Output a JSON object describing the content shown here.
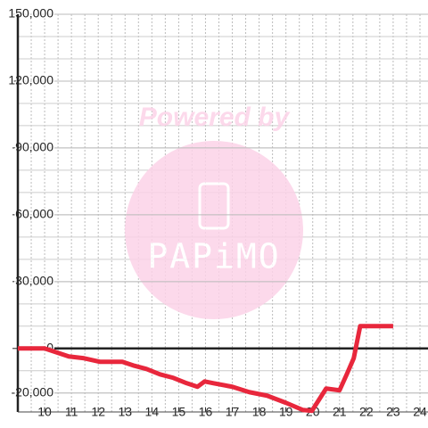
{
  "chart_data": {
    "type": "line",
    "watermark": {
      "title": "Powered by",
      "brand": "PAPiMO"
    },
    "x": [
      9,
      10,
      10.5,
      10.9,
      11.47,
      12.07,
      12.9,
      13.3,
      13.8,
      14.3,
      14.8,
      15.3,
      15.7,
      15.97,
      16.3,
      17,
      17.63,
      18.3,
      19,
      19.63,
      19.97,
      20.5,
      21,
      21.27,
      21.53,
      21.77,
      23
    ],
    "series": [
      {
        "color": "#e8273c",
        "values": [
          0,
          0,
          -2000,
          -3600,
          -4400,
          -6000,
          -6000,
          -7600,
          -9200,
          -11600,
          -13200,
          -15600,
          -17200,
          -14800,
          -15600,
          -17200,
          -19600,
          -21200,
          -24400,
          -27600,
          -28000,
          -18000,
          -18800,
          -11600,
          -4400,
          10000,
          10000
        ]
      }
    ],
    "xlim": [
      9,
      24.3
    ],
    "xticks": [
      10,
      11,
      12,
      13,
      14,
      15,
      16,
      17,
      18,
      19,
      20,
      21,
      22,
      23,
      24
    ],
    "ylim": [
      -28500,
      150000
    ],
    "yticks": [
      {
        "value": -20000,
        "label": "-20,000"
      },
      0,
      {
        "value": 30000,
        "label": "30,000"
      },
      {
        "value": 60000,
        "label": "60,000"
      },
      {
        "value": 90000,
        "label": "90,000"
      },
      {
        "value": 120000,
        "label": "120,000"
      },
      {
        "value": 150000,
        "label": "150,000"
      }
    ],
    "grid": true
  }
}
